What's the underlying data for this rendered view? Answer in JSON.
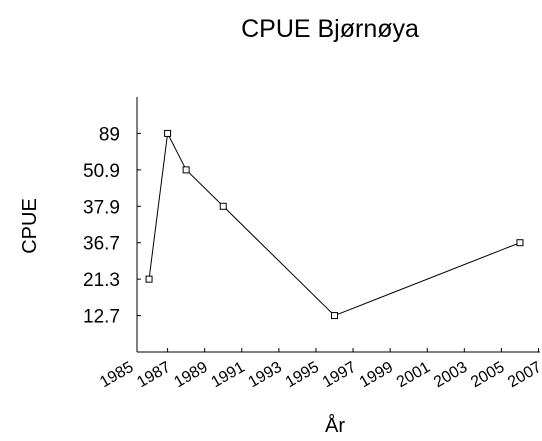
{
  "chart_data": {
    "type": "line",
    "title": "CPUE Bjørnøya",
    "x_label": "År",
    "y_label": "CPUE",
    "x": [
      1986,
      1987,
      1988,
      1990,
      1996,
      2006
    ],
    "series": [
      {
        "name": "CPUE",
        "color": "#000000",
        "values": [
          21.3,
          89,
          50.9,
          37.9,
          12.7,
          36.7
        ]
      }
    ],
    "xlim": [
      1985,
      2007
    ],
    "xticks": [
      1985,
      1987,
      1989,
      1991,
      1993,
      1995,
      1997,
      1999,
      2001,
      2003,
      2005,
      2007
    ],
    "yscale": "ordinal",
    "yticks": [
      12.7,
      21.3,
      36.7,
      37.9,
      50.9,
      89
    ],
    "grid": false,
    "legend": false
  }
}
